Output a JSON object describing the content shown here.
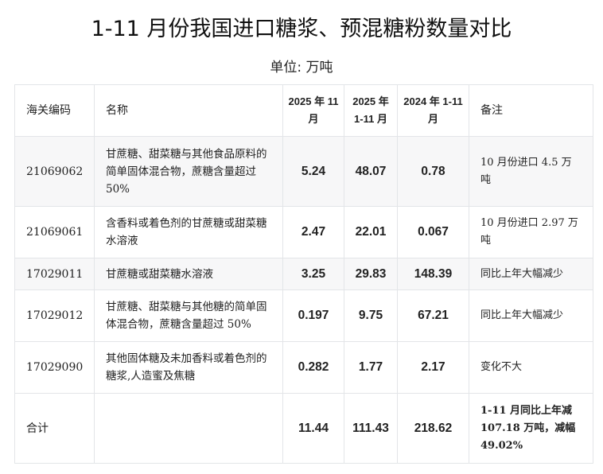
{
  "title": "1-11 月份我国进口糖浆、预混糖粉数量对比",
  "unit": "单位:  万吨",
  "headers": [
    "海关编码",
    "名称",
    "2025 年 11 月",
    "2025 年 1-11 月",
    "2024 年 1-11 月",
    "备注"
  ],
  "rows": [
    {
      "code": "21069062",
      "name": "甘蔗糖、甜菜糖与其他食品原料的简单固体混合物，蔗糖含量超过 50%",
      "v2025_11": "5.24",
      "v2025_1_11": "48.07",
      "v2024_1_11": "0.78",
      "note": "10 月份进口 4.5 万吨"
    },
    {
      "code": "21069061",
      "name": "含香料或着色剂的甘蔗糖或甜菜糖水溶液",
      "v2025_11": "2.47",
      "v2025_1_11": "22.01",
      "v2024_1_11": "0.067",
      "note": "10 月份进口 2.97 万吨"
    },
    {
      "code": "17029011",
      "name": "甘蔗糖或甜菜糖水溶液",
      "v2025_11": "3.25",
      "v2025_1_11": "29.83",
      "v2024_1_11": "148.39",
      "note": "同比上年大幅减少"
    },
    {
      "code": "17029012",
      "name": "甘蔗糖、甜菜糖与其他糖的简单固体混合物，蔗糖含量超过 50%",
      "v2025_11": "0.197",
      "v2025_1_11": "9.75",
      "v2024_1_11": "67.21",
      "note": "同比上年大幅减少"
    },
    {
      "code": "17029090",
      "name": "其他固体糖及未加香料或着色剂的糖浆,人造蜜及焦糖",
      "v2025_11": "0.282",
      "v2025_1_11": "1.77",
      "v2024_1_11": "2.17",
      "note": "变化不大"
    }
  ],
  "total": {
    "label": "合计",
    "name": "",
    "v2025_11": "11.44",
    "v2025_1_11": "111.43",
    "v2024_1_11": "218.62",
    "note": "1-11 月同比上年减 107.18 万吨，减幅 49.02%"
  }
}
